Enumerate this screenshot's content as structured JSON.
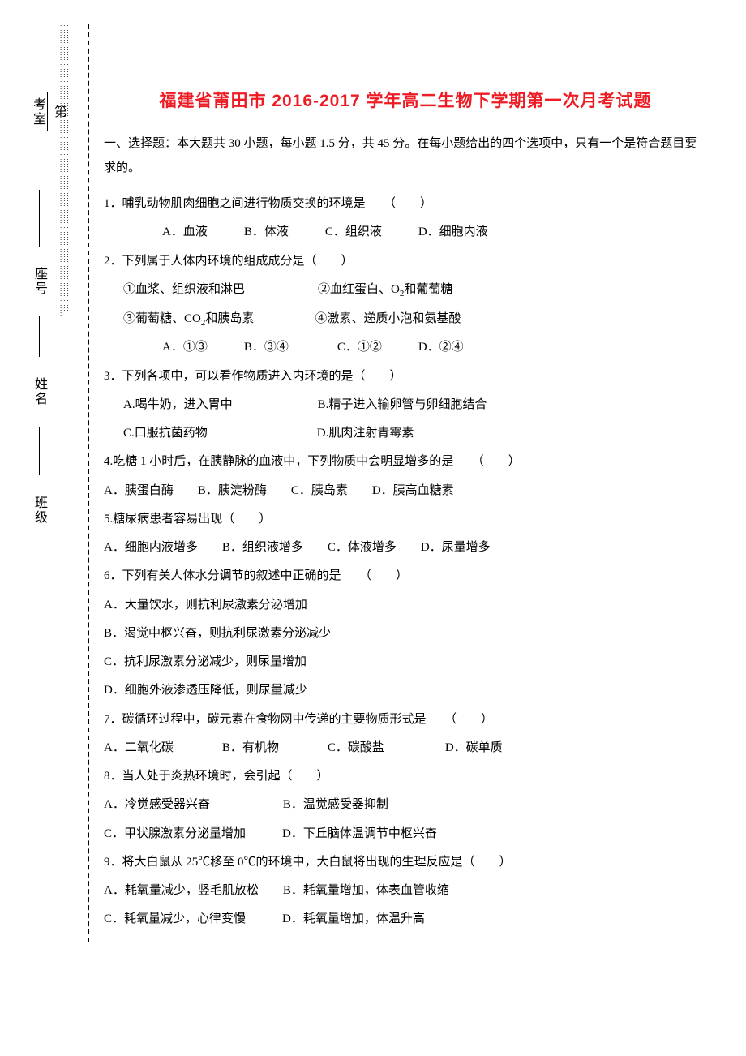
{
  "colors": {
    "title": "#ed1c24",
    "text": "#000000",
    "background": "#ffffff"
  },
  "typography": {
    "body_font": "SimSun/宋体",
    "title_font": "SimHei/黑体",
    "body_size_pt": 11,
    "title_size_pt": 16,
    "line_height": 2.35
  },
  "side": {
    "labels": [
      "第____考室",
      "座号________",
      "姓名________",
      "班级________"
    ]
  },
  "title": "福建省莆田市 2016-2017 学年高二生物下学期第一次月考试题",
  "intro": "一、选择题：本大题共 30 小题，每小题 1.5 分，共 45 分。在每小题给出的四个选项中，只有一个是符合题目要求的。",
  "questions": [
    {
      "stem": "1．哺乳动物肌肉细胞之间进行物质交换的环境是　　（　　）",
      "opt_lines": [
        "A．血液　　　B．体液　　　C．组织液　　　D．细胞内液"
      ],
      "opt_class": "opts2"
    },
    {
      "stem": "2．下列属于人体内环境的组成成分是（　　）",
      "sub_lines": [
        "①血浆、组织液和淋巴　　　　　　②血红蛋白、O₂和葡萄糖",
        "③葡萄糖、CO₂和胰岛素　　　　　④激素、递质小泡和氨基酸"
      ],
      "opt_lines": [
        "A．①③　　　B．③④　　　　C．①②　　　D．②④"
      ],
      "opt_class": "opts2"
    },
    {
      "stem": "3．下列各项中，可以看作物质进入内环境的是（　　）",
      "opt_lines": [
        "A.喝牛奶，进入胃中　　　　　　　B.精子进入输卵管与卵细胞结合",
        "C.口服抗菌药物　　　　　　　　　D.肌肉注射青霉素"
      ],
      "opt_class": "opts"
    },
    {
      "stem": "4.吃糖 1 小时后，在胰静脉的血液中，下列物质中会明显增多的是　　（　　）",
      "opt_lines": [
        "A．胰蛋白酶　　B．胰淀粉酶　　C．胰岛素　　D．胰高血糖素"
      ],
      "opt_class": "q"
    },
    {
      "stem": "5.糖尿病患者容易出现（　　）",
      "opt_lines": [
        "A．细胞内液增多　　B．组织液增多　　C．体液增多　　D．尿量增多"
      ],
      "opt_class": "q"
    },
    {
      "stem": "6．下列有关人体水分调节的叙述中正确的是　　（　　）",
      "opt_lines": [
        "A．大量饮水，则抗利尿激素分泌增加",
        "B．渴觉中枢兴奋，则抗利尿激素分泌减少",
        "C．抗利尿激素分泌减少，则尿量增加",
        "D．细胞外液渗透压降低，则尿量减少"
      ],
      "opt_class": "q"
    },
    {
      "stem": "7．碳循环过程中，碳元素在食物网中传递的主要物质形式是　　（　　）",
      "opt_lines": [
        "A．二氧化碳　　　　B．有机物　　　　C．碳酸盐　　　　　D．碳单质"
      ],
      "opt_class": "q"
    },
    {
      "stem": "8．当人处于炎热环境时，会引起（　　）",
      "opt_lines": [
        "A．冷觉感受器兴奋　　　　　　B．温觉感受器抑制",
        "C．甲状腺激素分泌量增加　　　D．下丘脑体温调节中枢兴奋"
      ],
      "opt_class": "q"
    },
    {
      "stem": "9．将大白鼠从 25℃移至 0℃的环境中，大白鼠将出现的生理反应是（　　）",
      "opt_lines": [
        "A．耗氧量减少，竖毛肌放松　　B．耗氧量增加，体表血管收缩",
        "C．耗氧量减少，心律变慢　　　D．耗氧量增加，体温升高"
      ],
      "opt_class": "q"
    }
  ]
}
